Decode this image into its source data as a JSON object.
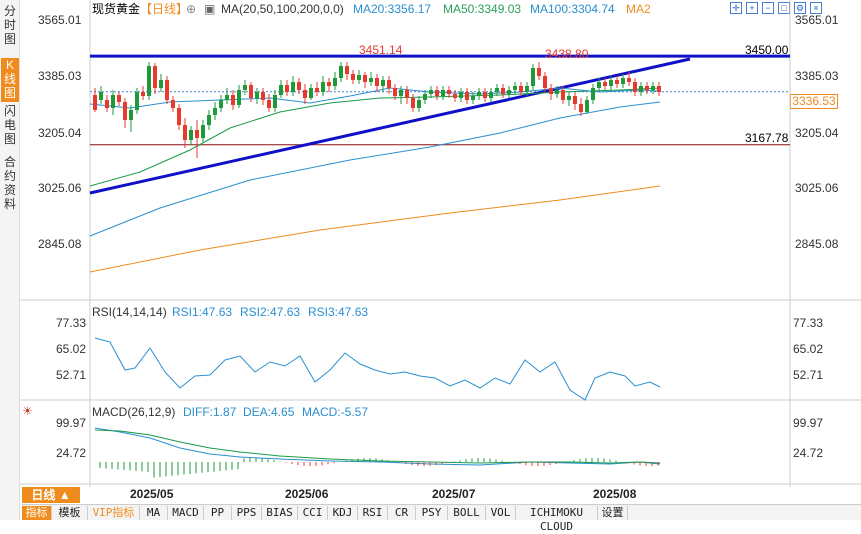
{
  "sidebar": {
    "tabs": [
      {
        "label": "分时图",
        "active": false
      },
      {
        "label": "K线图",
        "active": true
      },
      {
        "label": "闪电图",
        "active": false
      },
      {
        "label": "合约资料",
        "active": false
      }
    ]
  },
  "header": {
    "symbol": "现货黄金",
    "period_tag": "【日线】",
    "ma_label": "MA(20,50,100,200,0,0)",
    "ma20": "MA20:3356.17",
    "ma50": "MA50:3349.03",
    "ma100": "MA100:3304.74",
    "ma200": "MA2",
    "icons": [
      "crosshair-icon",
      "zoom-in-icon",
      "zoom-out-icon",
      "maximize-icon",
      "settings-icon",
      "close-icon"
    ]
  },
  "main_chart": {
    "y_ticks_left": [
      "3565.01",
      "3385.03",
      "3205.04",
      "3025.06",
      "2845.08"
    ],
    "y_ticks_right": [
      "3565.01",
      "3385.03",
      "3205.04",
      "3025.06",
      "2845.08"
    ],
    "current_price": "3336.53",
    "resistance_label": "3450.00",
    "support_label": "3167.78",
    "high_labels": [
      "3451.14",
      "3438.80"
    ]
  },
  "rsi": {
    "label": "RSI(14,14,14)",
    "rsi1": "RSI1:47.63",
    "rsi2": "RSI2:47.63",
    "rsi3": "RSI3:47.63",
    "y_ticks": [
      "77.33",
      "65.02",
      "52.71"
    ]
  },
  "macd": {
    "label": "MACD(26,12,9)",
    "diff": "DIFF:1.87",
    "dea": "DEA:4.65",
    "macd": "MACD:-5.57",
    "y_ticks": [
      "99.97",
      "24.72"
    ]
  },
  "x_axis": [
    "2025/05",
    "2025/06",
    "2025/07",
    "2025/08"
  ],
  "period_button": "日线 ▲",
  "bottom_tabs": [
    "指标",
    "模板",
    "VIP指标",
    "MA",
    "MACD",
    "PP",
    "PPS",
    "BIAS",
    "CCI",
    "KDJ",
    "RSI",
    "CR",
    "PSY",
    "BOLL",
    "VOL",
    "ICHIMOKU CLOUD",
    "设置"
  ],
  "colors": {
    "up": "#e8392f",
    "down": "#1f9a3b",
    "ma20": "#1a9a4a",
    "ma50": "#2a8fd0",
    "ma100": "#2a8fd0",
    "ma200": "#f08c1e",
    "trend": "#1010c8",
    "accent": "#f08c1e"
  }
}
